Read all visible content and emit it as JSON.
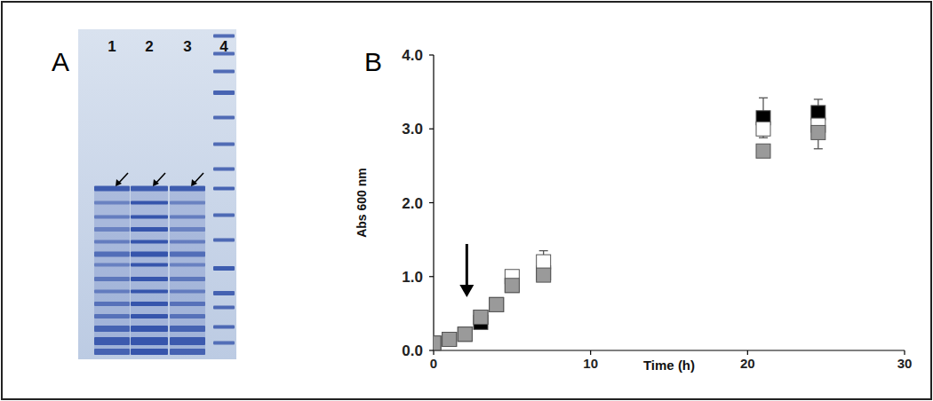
{
  "panels": [
    {
      "label": "A"
    },
    {
      "label": "B"
    }
  ],
  "gel": {
    "lanes": [
      "1",
      "2",
      "3",
      "4"
    ]
  },
  "chart_data": {
    "type": "scatter",
    "x_label": "Time (h)",
    "y_label": "Abs 600 nm",
    "x": [
      0,
      1,
      2,
      3,
      4,
      5,
      7,
      21,
      24.5
    ],
    "series": [
      {
        "color": "#000000",
        "marker": "square",
        "values": [
          0.1,
          0.15,
          0.22,
          0.38,
          0.62,
          0.88,
          1.05,
          3.15,
          3.22
        ],
        "errors": [
          null,
          null,
          null,
          null,
          null,
          null,
          null,
          0.27,
          0.18
        ]
      },
      {
        "color": "#ffffff",
        "marker": "square",
        "values": [
          0.1,
          0.15,
          0.22,
          0.45,
          0.62,
          1.0,
          1.2,
          3.0,
          3.05
        ],
        "errors": [
          null,
          null,
          null,
          null,
          null,
          null,
          0.15,
          null,
          null
        ]
      },
      {
        "color": "#9a9a9a",
        "marker": "square",
        "values": [
          0.1,
          0.15,
          0.22,
          0.45,
          0.62,
          0.88,
          1.02,
          2.7,
          2.95
        ],
        "errors": [
          null,
          null,
          null,
          null,
          null,
          null,
          null,
          null,
          0.22
        ]
      }
    ],
    "xlim": [
      0,
      30
    ],
    "ylim": [
      0,
      4
    ],
    "xticks": [
      0,
      10,
      20,
      30
    ],
    "yticks": [
      {
        "value": 0,
        "label": "0.0"
      },
      {
        "value": 1,
        "label": "1.0"
      },
      {
        "value": 2,
        "label": "2.0"
      },
      {
        "value": 3,
        "label": "3.0"
      },
      {
        "value": 4,
        "label": "4.0"
      }
    ],
    "grid": false
  }
}
